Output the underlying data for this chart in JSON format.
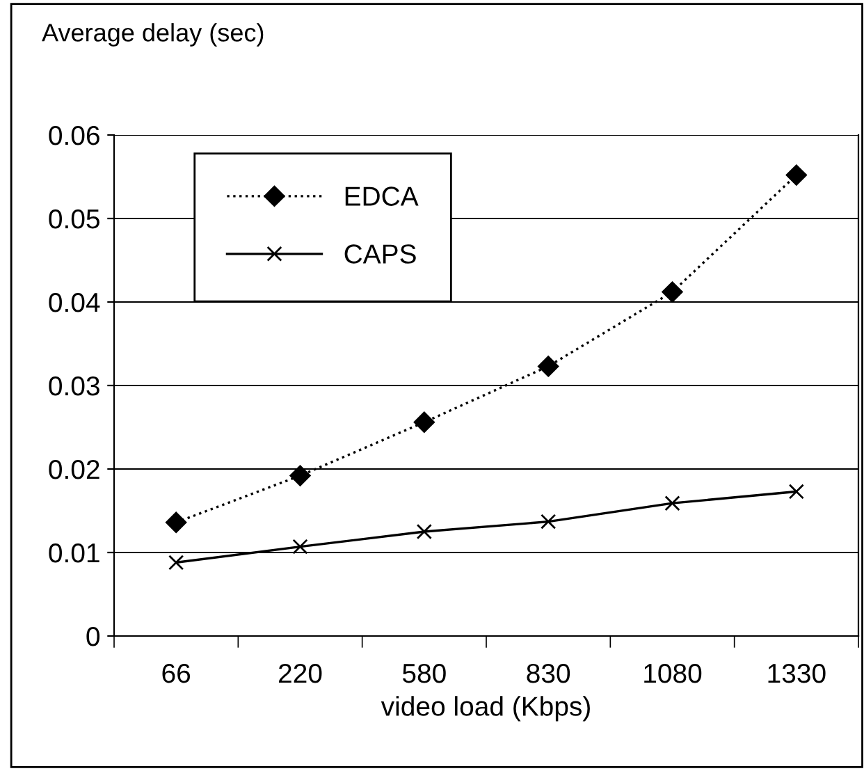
{
  "chart_data": {
    "type": "line",
    "ylabel": "Average delay (sec)",
    "xlabel": "video load (Kbps)",
    "categories": [
      "66",
      "220",
      "580",
      "830",
      "1080",
      "1330"
    ],
    "series": [
      {
        "name": "EDCA",
        "color": "#000000",
        "marker": "diamond",
        "line_style": "dotted",
        "values": [
          0.0136,
          0.0192,
          0.0256,
          0.0323,
          0.0412,
          0.0552
        ]
      },
      {
        "name": "CAPS",
        "color": "#000000",
        "marker": "cross",
        "line_style": "solid",
        "values": [
          0.0088,
          0.0107,
          0.0125,
          0.0137,
          0.0159,
          0.0173
        ]
      }
    ],
    "ylim": [
      0,
      0.06
    ],
    "yticks": [
      "0",
      0.01,
      0.02,
      0.03,
      0.04,
      0.05,
      0.06
    ],
    "grid": "y",
    "legend": "top left"
  }
}
